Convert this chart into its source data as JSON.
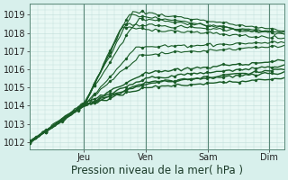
{
  "background_color": "#d8f0ec",
  "plot_bg_color": "#e8f8f4",
  "grid_color_minor": "#c0dcd8",
  "grid_color_major": "#90b8b0",
  "line_color": "#1a5c28",
  "marker_color": "#1a5c28",
  "ylabel_ticks": [
    1012,
    1013,
    1014,
    1015,
    1016,
    1017,
    1018,
    1019
  ],
  "ylim": [
    1011.6,
    1019.6
  ],
  "xlabel": "Pression niveau de la mer( hPa )",
  "day_labels": [
    "Jeu",
    "Ven",
    "Sam",
    "Dim"
  ],
  "day_positions": [
    0.22,
    0.47,
    0.72,
    0.97
  ],
  "xlim": [
    0.0,
    1.03
  ],
  "label_fontsize": 8.5,
  "tick_fontsize": 7.0
}
